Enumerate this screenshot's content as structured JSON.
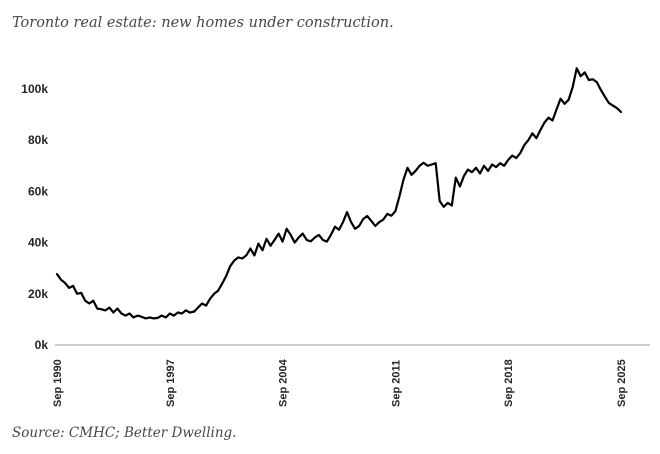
{
  "header": {
    "title": "Toronto real estate: new homes under construction."
  },
  "footer": {
    "source": "Source: CMHC; Better Dwelling."
  },
  "chart_data": {
    "type": "line",
    "title": "Toronto real estate: new homes under construction.",
    "series_name": "New homes under construction (thousands)",
    "x_unit": "year (quarterly readings, Sep 1990 - Sep 2025)",
    "x_start": 1990.75,
    "x_step": 0.25,
    "x_end": 2025.75,
    "values_thousands": [
      27.7,
      25.5,
      24.2,
      22.3,
      23.1,
      20.0,
      20.4,
      17.3,
      16.2,
      17.3,
      14.2,
      14.0,
      13.5,
      14.6,
      12.7,
      14.2,
      12.3,
      11.5,
      12.3,
      10.8,
      11.5,
      11.0,
      10.4,
      10.8,
      10.4,
      10.6,
      11.5,
      10.8,
      12.3,
      11.5,
      12.7,
      12.3,
      13.5,
      12.7,
      13.0,
      14.6,
      16.2,
      15.4,
      18.1,
      20.0,
      21.2,
      24.0,
      27.0,
      30.8,
      33.0,
      34.2,
      33.8,
      35.0,
      37.7,
      35.0,
      39.6,
      37.0,
      41.5,
      38.8,
      41.0,
      43.5,
      40.4,
      45.4,
      43.0,
      40.0,
      42.0,
      43.5,
      41.0,
      40.5,
      42.0,
      43.0,
      41.0,
      40.4,
      43.0,
      46.2,
      45.0,
      48.0,
      51.9,
      48.0,
      45.4,
      46.5,
      49.2,
      50.4,
      48.5,
      46.5,
      48.0,
      49.0,
      51.2,
      50.5,
      52.3,
      58.0,
      64.6,
      69.2,
      66.5,
      68.0,
      70.0,
      71.2,
      70.0,
      70.5,
      71.0,
      56.2,
      54.0,
      55.5,
      54.5,
      65.4,
      61.9,
      66.0,
      68.5,
      67.5,
      69.2,
      67.0,
      70.0,
      68.0,
      70.5,
      69.5,
      71.0,
      70.0,
      72.3,
      74.0,
      73.0,
      75.0,
      78.1,
      80.0,
      82.7,
      80.8,
      84.0,
      86.9,
      88.8,
      87.7,
      92.0,
      96.2,
      94.2,
      95.8,
      100.8,
      108.1,
      105.0,
      106.5,
      103.5,
      103.8,
      102.7,
      99.6,
      97.0,
      94.5,
      93.5,
      92.5,
      91.0
    ],
    "ylim": [
      0,
      110
    ],
    "yticks": [
      {
        "value": 0,
        "label": "0k"
      },
      {
        "value": 20,
        "label": "20k"
      },
      {
        "value": 40,
        "label": "40k"
      },
      {
        "value": 60,
        "label": "60k"
      },
      {
        "value": 80,
        "label": "80k"
      },
      {
        "value": 100,
        "label": "100k"
      }
    ],
    "xticks": [
      {
        "x": 1990.75,
        "label": "Sep 1990"
      },
      {
        "x": 1997.75,
        "label": "Sep 1997"
      },
      {
        "x": 2004.75,
        "label": "Sep 2004"
      },
      {
        "x": 2011.75,
        "label": "Sep 2011"
      },
      {
        "x": 2018.75,
        "label": "Sep 2018"
      },
      {
        "x": 2025.75,
        "label": "Sep 2025"
      }
    ],
    "grid": false,
    "legend": "none",
    "line_color": "#000000",
    "axis_line_color": "#999999",
    "tick_label_color": "#262626",
    "title_color": "#474747"
  }
}
